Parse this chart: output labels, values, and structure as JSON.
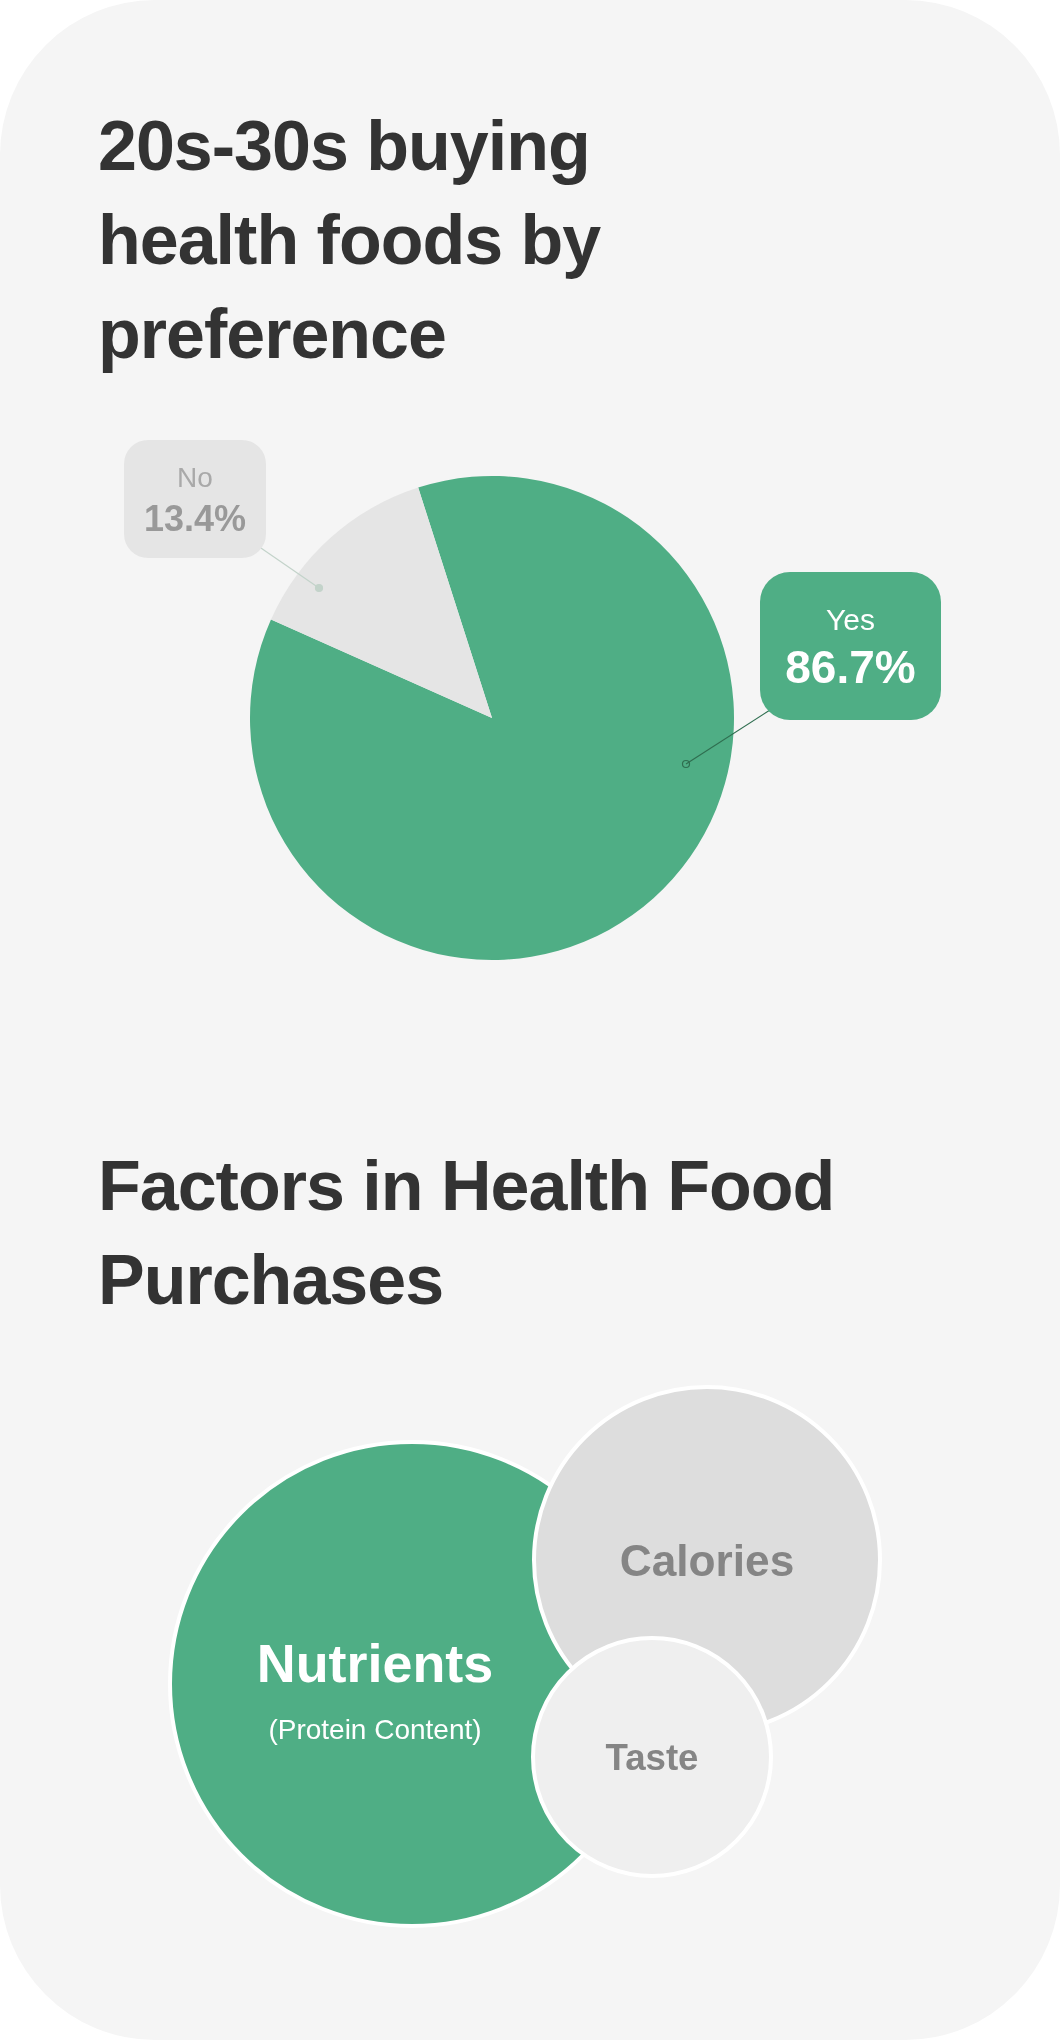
{
  "chart_data": [
    {
      "type": "pie",
      "title": "20s-30s buying health foods by preference",
      "categories": [
        "Yes",
        "No"
      ],
      "values": [
        86.7,
        13.4
      ],
      "colors": [
        "#4fae85",
        "#e5e5e5"
      ],
      "value_labels": [
        "86.7%",
        "13.4%"
      ]
    },
    {
      "type": "other",
      "title": "Factors in Health Food Purchases",
      "categories": [
        "Nutrients",
        "Calories",
        "Taste"
      ],
      "colors": [
        "#4fae85",
        "#dddddd",
        "#efefef"
      ],
      "annotations": [
        "(Protein Content)"
      ]
    }
  ]
}
